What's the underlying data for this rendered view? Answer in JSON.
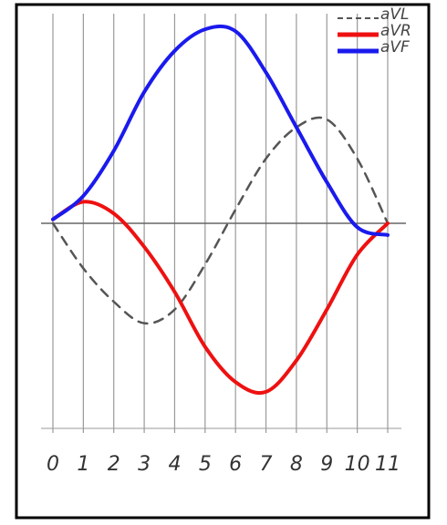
{
  "chart_data": {
    "type": "line",
    "x": [
      0,
      1,
      2,
      3,
      4,
      5,
      6,
      7,
      8,
      9,
      10,
      11
    ],
    "xlim": [
      0,
      11
    ],
    "xticks": [
      0,
      1,
      2,
      3,
      4,
      5,
      6,
      7,
      8,
      9,
      10,
      11
    ],
    "ylim": [
      -1,
      1
    ],
    "grid": true,
    "legend": "top-right",
    "series": [
      {
        "name": "aVL",
        "color": "#555555",
        "dashed": true,
        "values": [
          0,
          -0.23,
          -0.4,
          -0.51,
          -0.44,
          -0.21,
          0.07,
          0.33,
          0.49,
          0.53,
          0.33,
          0
        ]
      },
      {
        "name": "aVR",
        "color": "#ee1111",
        "values": [
          0.02,
          0.11,
          0.05,
          -0.12,
          -0.35,
          -0.63,
          -0.81,
          -0.86,
          -0.7,
          -0.44,
          -0.16,
          0
        ]
      },
      {
        "name": "aVF",
        "color": "#1a1aee",
        "values": [
          0.02,
          0.14,
          0.37,
          0.67,
          0.88,
          0.99,
          0.98,
          0.77,
          0.49,
          0.21,
          -0.02,
          -0.06
        ]
      }
    ]
  }
}
